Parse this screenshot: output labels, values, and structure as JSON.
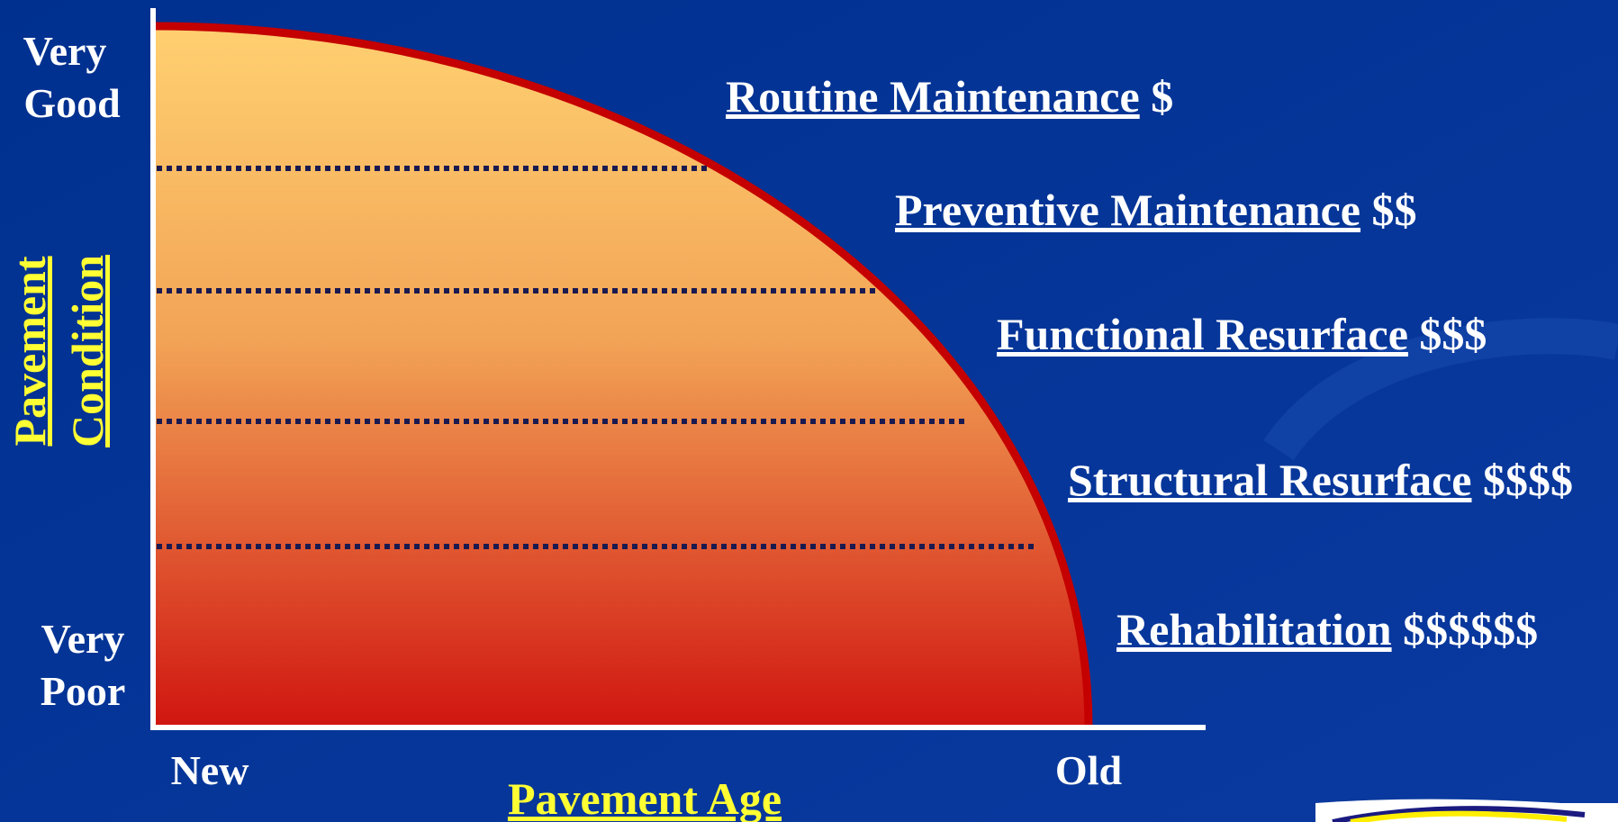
{
  "y_axis": {
    "top_label": [
      "Very",
      "Good"
    ],
    "bottom_label": [
      "Very",
      "Poor"
    ],
    "title": [
      "Pavement",
      "Condition"
    ]
  },
  "x_axis": {
    "left_label": "New",
    "right_label": "Old",
    "title": "Pavement Age"
  },
  "treatments": [
    {
      "name": "Routine Maintenance",
      "cost": "$"
    },
    {
      "name": "Preventive Maintenance",
      "cost": "$$"
    },
    {
      "name": "Functional Resurface",
      "cost": "$$$"
    },
    {
      "name": "Structural Resurface",
      "cost": "$$$$"
    },
    {
      "name": "Rehabilitation",
      "cost": "$$$$$$"
    }
  ]
}
